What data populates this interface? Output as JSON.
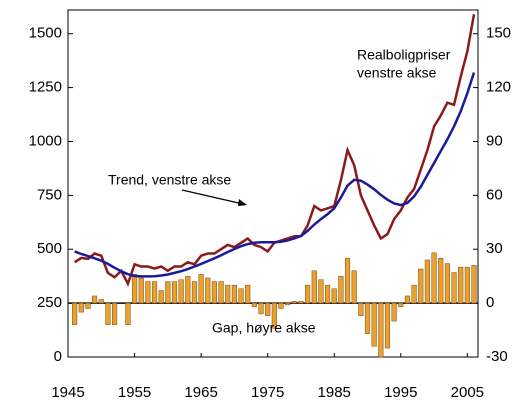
{
  "chart_data": {
    "type": "line",
    "x": [
      1946,
      1947,
      1948,
      1949,
      1950,
      1951,
      1952,
      1953,
      1954,
      1955,
      1956,
      1957,
      1958,
      1959,
      1960,
      1961,
      1962,
      1963,
      1964,
      1965,
      1966,
      1967,
      1968,
      1969,
      1970,
      1971,
      1972,
      1973,
      1974,
      1975,
      1976,
      1977,
      1978,
      1979,
      1980,
      1981,
      1982,
      1983,
      1984,
      1985,
      1986,
      1987,
      1988,
      1989,
      1990,
      1991,
      1992,
      1993,
      1994,
      1995,
      1996,
      1997,
      1998,
      1999,
      2000,
      2001,
      2002,
      2003,
      2004,
      2005,
      2006
    ],
    "series": [
      {
        "name": "Realboligpriser, venstre akse",
        "type": "line",
        "color": "#8b1a1a",
        "values": [
          440,
          460,
          455,
          480,
          470,
          390,
          370,
          400,
          340,
          430,
          420,
          420,
          410,
          420,
          400,
          420,
          420,
          440,
          430,
          470,
          480,
          480,
          500,
          520,
          510,
          530,
          550,
          520,
          510,
          490,
          530,
          540,
          550,
          560,
          560,
          610,
          700,
          680,
          690,
          700,
          820,
          960,
          890,
          750,
          680,
          610,
          550,
          570,
          640,
          680,
          740,
          780,
          870,
          960,
          1070,
          1120,
          1180,
          1170,
          1300,
          1420,
          1590
        ]
      },
      {
        "name": "Trend, venstre akse",
        "type": "line",
        "color": "#1a1a9a",
        "values": [
          490,
          478,
          468,
          458,
          447,
          432,
          414,
          398,
          384,
          376,
          374,
          374,
          375,
          378,
          383,
          390,
          398,
          408,
          420,
          432,
          445,
          458,
          472,
          487,
          501,
          514,
          524,
          530,
          532,
          532,
          532,
          535,
          541,
          550,
          562,
          585,
          615,
          640,
          663,
          690,
          740,
          795,
          822,
          818,
          800,
          778,
          752,
          730,
          712,
          705,
          715,
          745,
          790,
          845,
          900,
          955,
          1010,
          1070,
          1140,
          1225,
          1320
        ]
      },
      {
        "name": "Gap, høyre akse",
        "type": "bar",
        "axis": "y2",
        "color": "#e8a030",
        "values": [
          -12,
          -5,
          -3,
          4,
          2,
          -12,
          -12,
          0,
          -12,
          16,
          14,
          12,
          12,
          7,
          12,
          12,
          13,
          15,
          12,
          16,
          14,
          12,
          12,
          10,
          10,
          8,
          10,
          -2,
          -6,
          -7,
          -14,
          -3,
          -1,
          1,
          1,
          10,
          18,
          13,
          10,
          8,
          15,
          25,
          18,
          -7,
          -17,
          -24,
          -30,
          -25,
          -10,
          -2,
          4,
          10,
          19,
          24,
          28,
          25,
          22,
          17,
          20,
          20,
          21
        ]
      }
    ],
    "annotations": [
      [
        "Realboligpriser",
        "venstre akse"
      ],
      [
        "Trend, venstre akse"
      ],
      [
        "Gap, høyre akse"
      ]
    ],
    "xlim": [
      1945,
      2006.6
    ],
    "xticks": [
      1945,
      1955,
      1965,
      1975,
      1985,
      1995,
      2005
    ],
    "ylim": [
      0,
      1610
    ],
    "yticks": [
      0,
      250,
      500,
      750,
      1000,
      1250,
      1500
    ],
    "y2lim": [
      -30,
      163.2
    ],
    "y2ticks": [
      -30,
      0,
      30,
      60,
      90,
      120,
      150
    ]
  }
}
